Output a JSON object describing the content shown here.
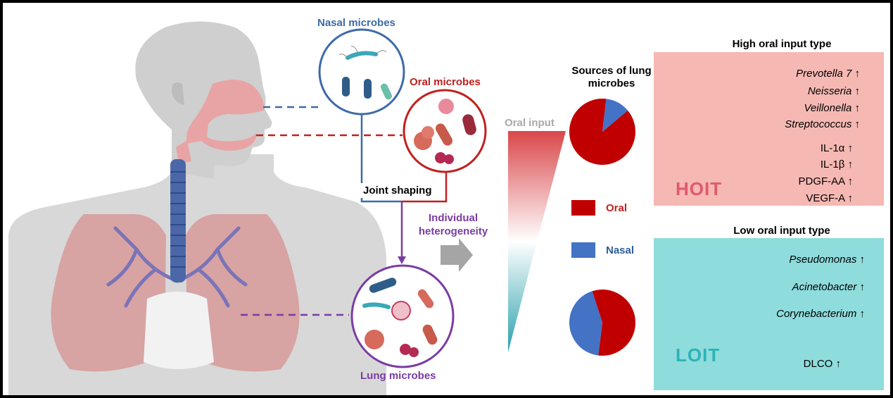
{
  "labels": {
    "nasal_microbes": "Nasal microbes",
    "oral_microbes": "Oral microbes",
    "lung_microbes": "Lung microbes",
    "joint_shaping": "Joint shaping",
    "individual_heterogeneity": "Individual heterogeneity",
    "oral_input": "Oral input",
    "sources_title": "Sources of lung microbes"
  },
  "legend": {
    "oral": {
      "label": "Oral",
      "color": "#c00000"
    },
    "nasal": {
      "label": "Nasal",
      "color": "#4472c4"
    }
  },
  "chart_data": [
    {
      "type": "pie",
      "group": "HOIT",
      "slices": [
        {
          "name": "Oral",
          "value": 0.88
        },
        {
          "name": "Nasal",
          "value": 0.12
        }
      ]
    },
    {
      "type": "pie",
      "group": "LOIT",
      "slices": [
        {
          "name": "Oral",
          "value": 0.57
        },
        {
          "name": "Nasal",
          "value": 0.43
        }
      ]
    }
  ],
  "hoit": {
    "title": "High oral input type",
    "abbr": "HOIT",
    "color": "#f5b8b2",
    "taxa": [
      "Prevotella 7 ↑",
      "Neisseria ↑",
      "Veillonella ↑",
      "Streptococcus ↑"
    ],
    "cytokines": [
      "IL-1α ↑",
      "IL-1β ↑",
      "PDGF-AA ↑",
      "VEGF-A ↑"
    ]
  },
  "loit": {
    "title": "Low oral input type",
    "abbr": "LOIT",
    "color": "#8fdcdc",
    "taxa": [
      "Pseudomonas ↑",
      "Acinetobacter ↑",
      "Corynebacterium ↑"
    ],
    "function": "DLCO ↑"
  },
  "icons": [
    "human-anatomy-icon",
    "bacteria-icon",
    "people-group-icon",
    "receptor-icon",
    "lungs-icon",
    "arrow-right-icon"
  ]
}
